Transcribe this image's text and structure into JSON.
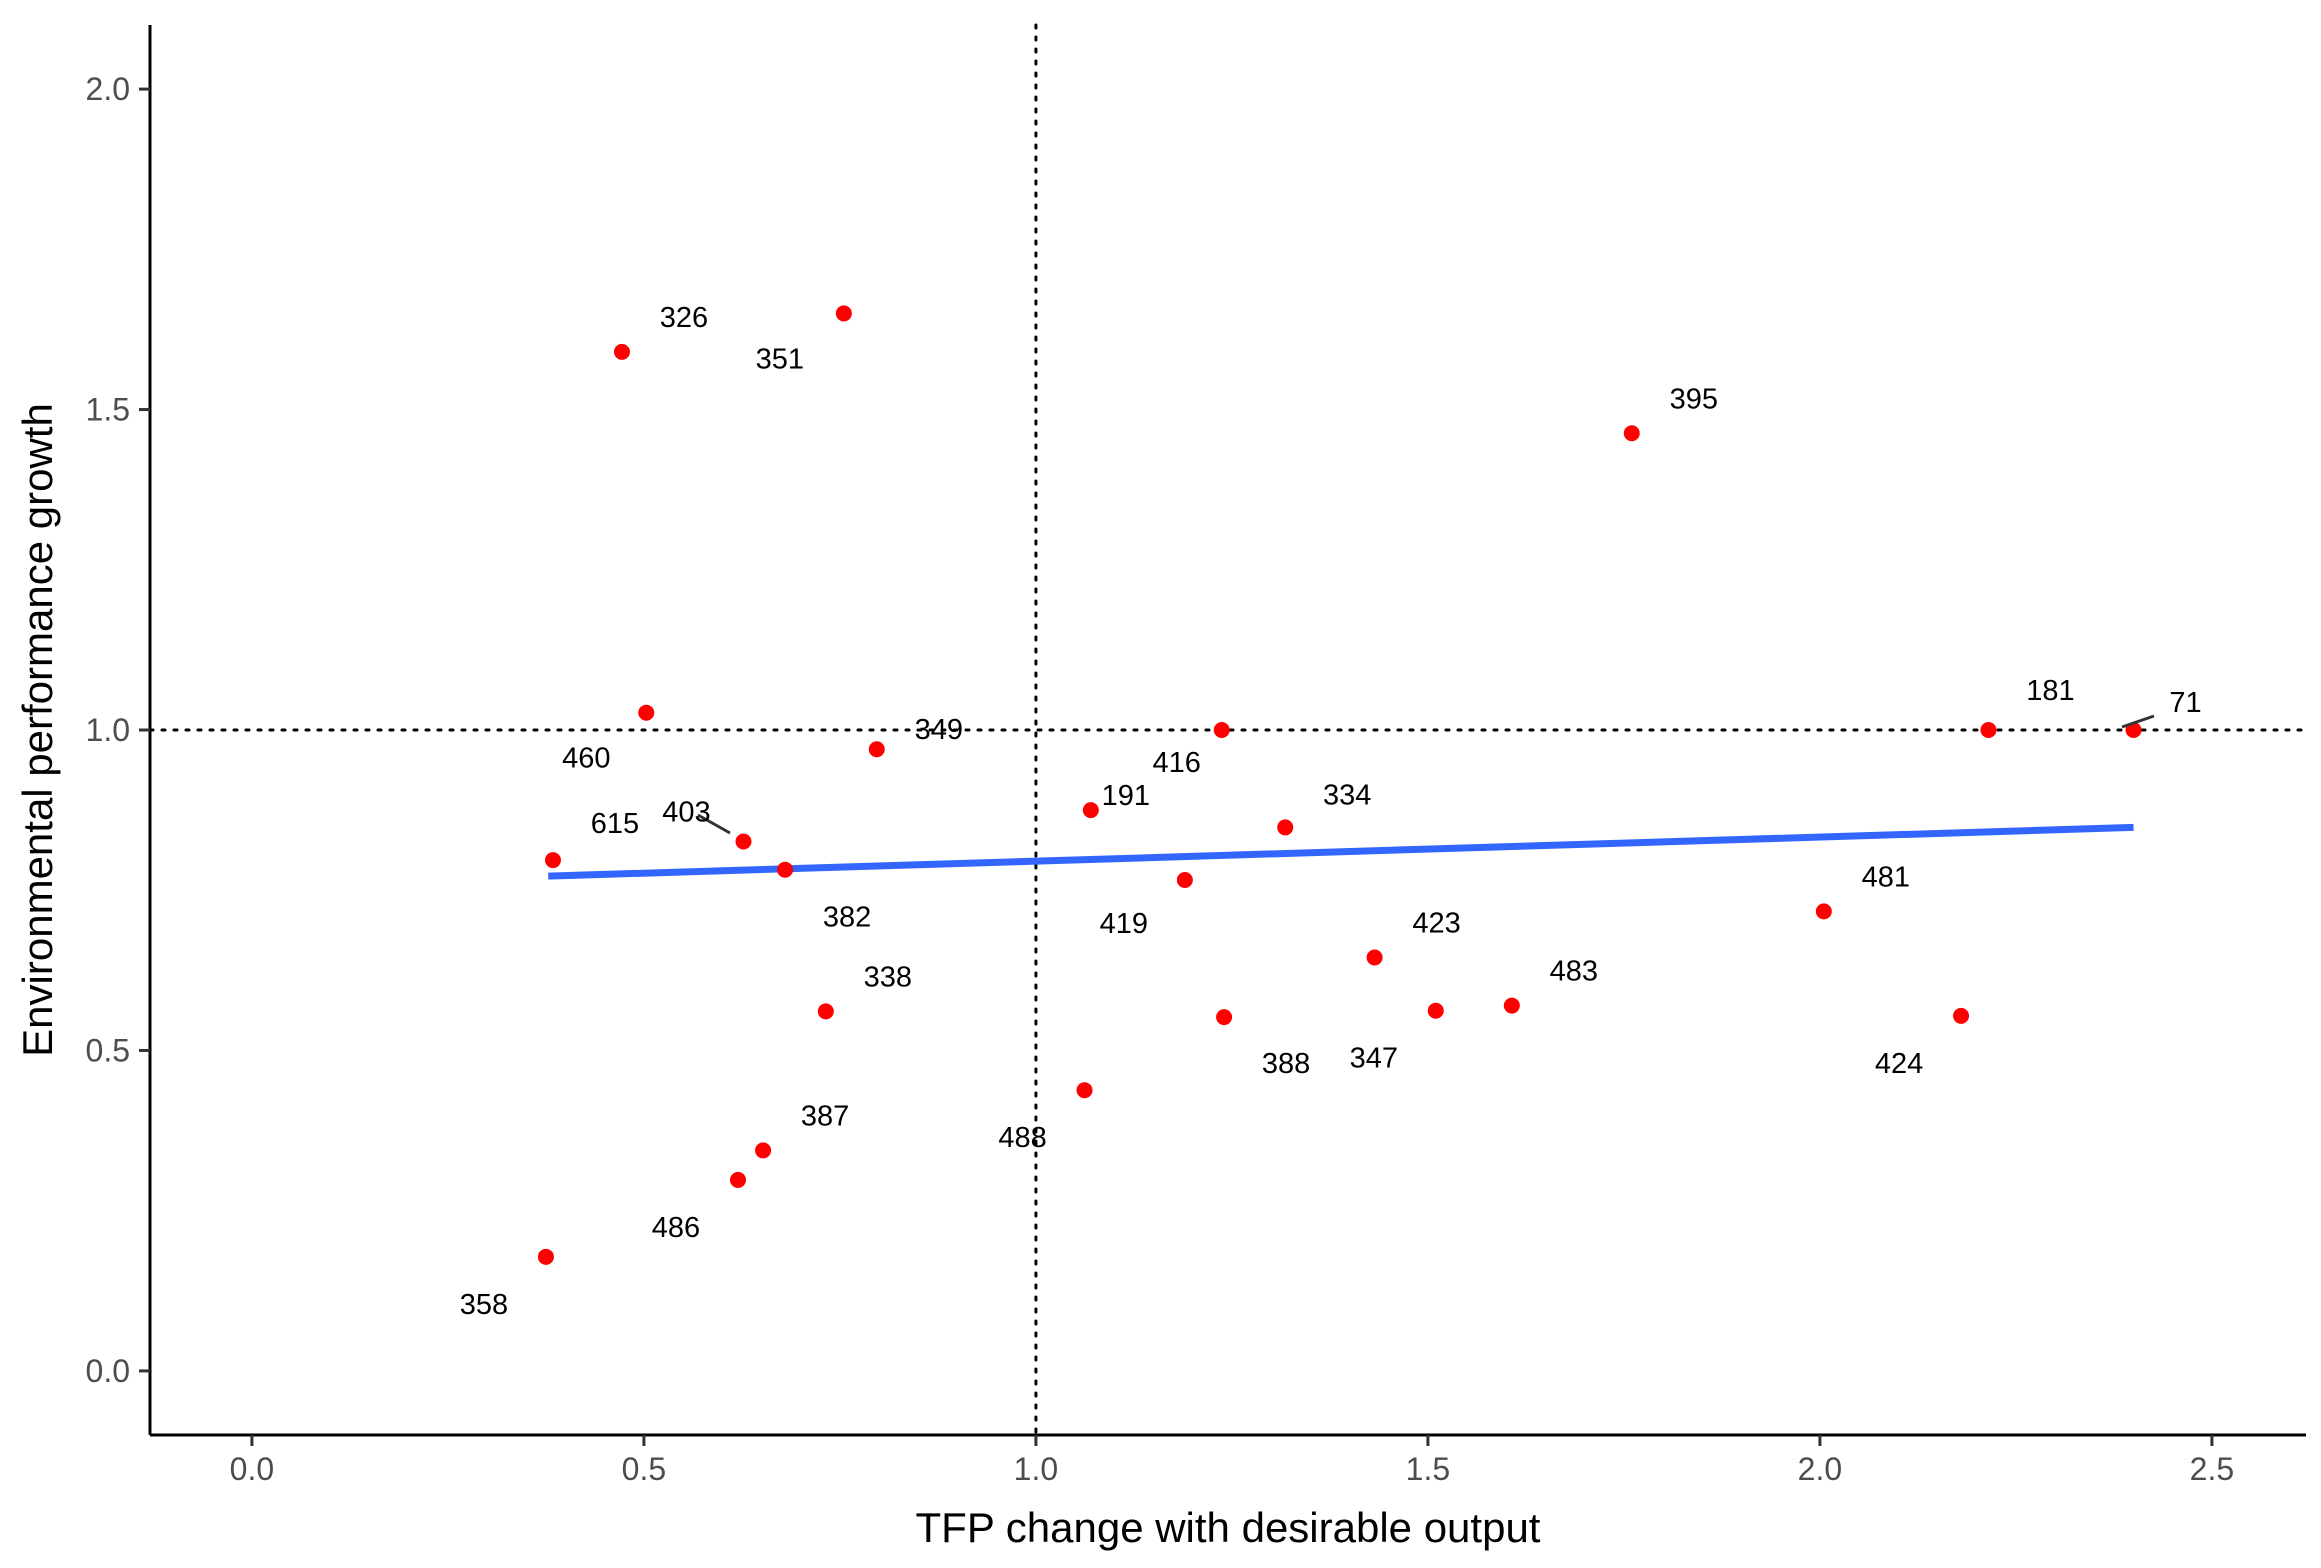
{
  "chart_data": {
    "type": "scatter",
    "title": "",
    "xlabel": "TFP change with desirable output",
    "ylabel": "Environmental performance growth",
    "xlim": [
      -0.13,
      2.62
    ],
    "ylim": [
      -0.1,
      2.1
    ],
    "x_ticks": [
      "0.0",
      "0.5",
      "1.0",
      "1.5",
      "2.0",
      "2.5"
    ],
    "y_ticks": [
      "0.0",
      "0.5",
      "1.0",
      "1.5",
      "2.0"
    ],
    "grid": false,
    "reference_lines": {
      "x": 1.0,
      "y": 1.0,
      "style": "dotted"
    },
    "trend_line": {
      "x": [
        0.378,
        2.4
      ],
      "y": [
        0.772,
        0.848
      ],
      "color": "#3366FF"
    },
    "point_color": "#FF0000",
    "points": [
      {
        "label": "326",
        "x": 0.472,
        "y": 1.59
      },
      {
        "label": "351",
        "x": 0.755,
        "y": 1.65
      },
      {
        "label": "395",
        "x": 1.76,
        "y": 1.463
      },
      {
        "label": "460",
        "x": 0.503,
        "y": 1.027
      },
      {
        "label": "349",
        "x": 0.797,
        "y": 0.97
      },
      {
        "label": "416",
        "x": 1.237,
        "y": 1.0
      },
      {
        "label": "181",
        "x": 2.215,
        "y": 1.0
      },
      {
        "label": "71",
        "x": 2.4,
        "y": 1.0
      },
      {
        "label": "191",
        "x": 1.07,
        "y": 0.875
      },
      {
        "label": "334",
        "x": 1.318,
        "y": 0.848
      },
      {
        "label": "403",
        "x": 0.627,
        "y": 0.826
      },
      {
        "label": "615",
        "x": 0.384,
        "y": 0.797
      },
      {
        "label": "382",
        "x": 0.68,
        "y": 0.782
      },
      {
        "label": "419",
        "x": 1.19,
        "y": 0.766
      },
      {
        "label": "481",
        "x": 2.005,
        "y": 0.717
      },
      {
        "label": "423",
        "x": 1.432,
        "y": 0.645
      },
      {
        "label": "338",
        "x": 0.732,
        "y": 0.561
      },
      {
        "label": "347",
        "x": 1.51,
        "y": 0.562
      },
      {
        "label": "483",
        "x": 1.607,
        "y": 0.57
      },
      {
        "label": "388",
        "x": 1.24,
        "y": 0.552
      },
      {
        "label": "424",
        "x": 2.18,
        "y": 0.554
      },
      {
        "label": "488",
        "x": 1.062,
        "y": 0.438
      },
      {
        "label": "387",
        "x": 0.652,
        "y": 0.344
      },
      {
        "label": "486",
        "x": 0.62,
        "y": 0.298
      },
      {
        "label": "358",
        "x": 0.375,
        "y": 0.178
      }
    ]
  }
}
